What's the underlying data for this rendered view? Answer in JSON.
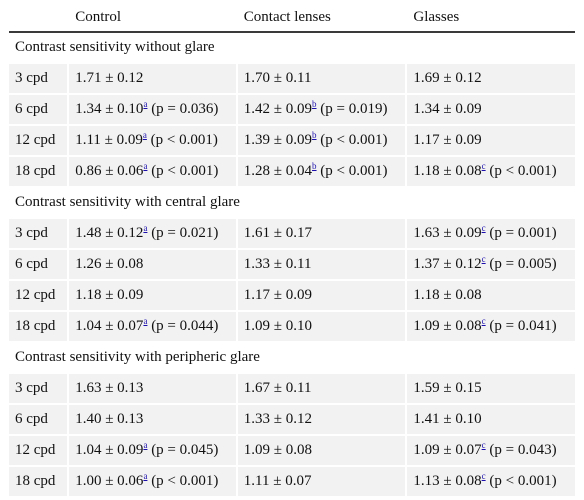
{
  "header": [
    "",
    "Control",
    "Contact lenses",
    "Glasses"
  ],
  "sections": [
    {
      "title": "Contrast sensitivity without glare",
      "rows": [
        {
          "label": "3 cpd",
          "cells": [
            {
              "v": "1.71 ± 0.12",
              "sup": "",
              "p": ""
            },
            {
              "v": "1.70 ± 0.11",
              "sup": "",
              "p": ""
            },
            {
              "v": "1.69 ± 0.12",
              "sup": "",
              "p": ""
            }
          ]
        },
        {
          "label": "6 cpd",
          "cells": [
            {
              "v": "1.34 ± 0.10",
              "sup": "a",
              "p": " (p = 0.036)"
            },
            {
              "v": "1.42 ± 0.09",
              "sup": "b",
              "p": " (p = 0.019)"
            },
            {
              "v": "1.34 ± 0.09",
              "sup": "",
              "p": ""
            }
          ]
        },
        {
          "label": "12 cpd",
          "cells": [
            {
              "v": "1.11 ± 0.09",
              "sup": "a",
              "p": " (p < 0.001)"
            },
            {
              "v": "1.39 ± 0.09",
              "sup": "b",
              "p": " (p < 0.001)"
            },
            {
              "v": "1.17 ± 0.09",
              "sup": "",
              "p": ""
            }
          ]
        },
        {
          "label": "18 cpd",
          "cells": [
            {
              "v": "0.86 ± 0.06",
              "sup": "a",
              "p": " (p < 0.001)"
            },
            {
              "v": "1.28 ± 0.04",
              "sup": "b",
              "p": " (p < 0.001)"
            },
            {
              "v": "1.18 ± 0.08",
              "sup": "c",
              "p": " (p < 0.001)"
            }
          ]
        }
      ]
    },
    {
      "title": "Contrast sensitivity with central glare",
      "rows": [
        {
          "label": "3 cpd",
          "cells": [
            {
              "v": "1.48 ± 0.12",
              "sup": "a",
              "p": " (p = 0.021)"
            },
            {
              "v": "1.61 ± 0.17",
              "sup": "",
              "p": ""
            },
            {
              "v": "1.63 ± 0.09",
              "sup": "c",
              "p": " (p = 0.001)"
            }
          ]
        },
        {
          "label": "6 cpd",
          "cells": [
            {
              "v": "1.26 ± 0.08",
              "sup": "",
              "p": ""
            },
            {
              "v": "1.33 ± 0.11",
              "sup": "",
              "p": ""
            },
            {
              "v": "1.37 ± 0.12",
              "sup": "c",
              "p": " (p = 0.005)"
            }
          ]
        },
        {
          "label": "12 cpd",
          "cells": [
            {
              "v": "1.18 ± 0.09",
              "sup": "",
              "p": ""
            },
            {
              "v": "1.17 ± 0.09",
              "sup": "",
              "p": ""
            },
            {
              "v": "1.18 ± 0.08",
              "sup": "",
              "p": ""
            }
          ]
        },
        {
          "label": "18 cpd",
          "cells": [
            {
              "v": "1.04 ± 0.07",
              "sup": "a",
              "p": " (p = 0.044)"
            },
            {
              "v": "1.09 ± 0.10",
              "sup": "",
              "p": ""
            },
            {
              "v": "1.09 ± 0.08",
              "sup": "c",
              "p": " (p = 0.041)"
            }
          ]
        }
      ]
    },
    {
      "title": "Contrast sensitivity with peripheric glare",
      "rows": [
        {
          "label": "3 cpd",
          "cells": [
            {
              "v": "1.63 ± 0.13",
              "sup": "",
              "p": ""
            },
            {
              "v": "1.67 ± 0.11",
              "sup": "",
              "p": ""
            },
            {
              "v": "1.59 ± 0.15",
              "sup": "",
              "p": ""
            }
          ]
        },
        {
          "label": "6 cpd",
          "cells": [
            {
              "v": "1.40 ± 0.13",
              "sup": "",
              "p": ""
            },
            {
              "v": "1.33 ± 0.12",
              "sup": "",
              "p": ""
            },
            {
              "v": "1.41 ± 0.10",
              "sup": "",
              "p": ""
            }
          ]
        },
        {
          "label": "12 cpd",
          "cells": [
            {
              "v": "1.04 ± 0.09",
              "sup": "a",
              "p": " (p = 0.045)"
            },
            {
              "v": "1.09 ± 0.08",
              "sup": "",
              "p": ""
            },
            {
              "v": "1.09 ± 0.07",
              "sup": "c",
              "p": " (p = 0.043)"
            }
          ]
        },
        {
          "label": "18 cpd",
          "cells": [
            {
              "v": "1.00 ± 0.06",
              "sup": "a",
              "p": " (p < 0.001)"
            },
            {
              "v": "1.11 ± 0.07",
              "sup": "",
              "p": ""
            },
            {
              "v": "1.13 ± 0.08",
              "sup": "c",
              "p": " (p < 0.001)"
            }
          ]
        }
      ]
    }
  ],
  "colors": {
    "header_rule": "#3a3a3a",
    "cell_bg": "#f2f2f2",
    "link": "#1a0dab"
  }
}
